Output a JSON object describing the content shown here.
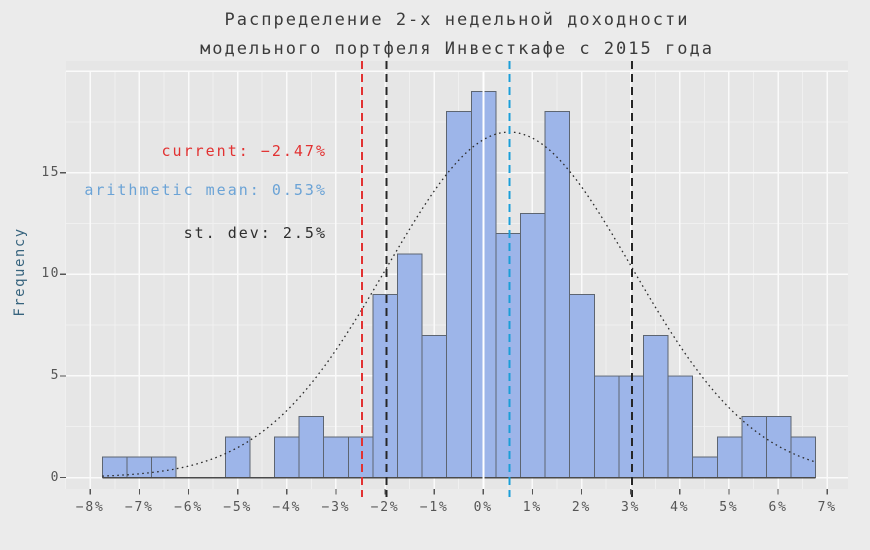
{
  "title": {
    "line1": "Распределение 2-х недельной доходности",
    "line2": "модельного портфеля Инвесткафе с 2015 года"
  },
  "annotations": {
    "current": {
      "text": "current: −2.47%",
      "value": -2.47,
      "color": "#e23232"
    },
    "mean": {
      "text": "arithmetic mean: 0.53%",
      "value": 0.53,
      "color": "#6ba3d6"
    },
    "stdev": {
      "text": "st. dev: 2.5%",
      "value": 2.5,
      "color": "#2e2e2e"
    }
  },
  "chart_data": {
    "type": "bar",
    "subtype": "histogram",
    "title": "Распределение 2-х недельной доходности модельного портфеля Инвесткафе с 2015 года",
    "xlabel": "",
    "ylabel": "Frequency",
    "bin_start": -7.755,
    "bin_width": 0.5007,
    "counts": [
      1,
      1,
      1,
      0,
      0,
      2,
      0,
      2,
      3,
      2,
      2,
      9,
      11,
      7,
      18,
      19,
      12,
      13,
      18,
      9,
      5,
      5,
      7,
      5,
      1,
      2,
      3,
      3,
      2
    ],
    "normal_curve": {
      "mean": 0.53,
      "std": 2.5,
      "peak": 17
    },
    "vlines": [
      {
        "name": "zero-line",
        "x": 0,
        "color": "#ffffff",
        "style": "solid"
      },
      {
        "name": "current-line",
        "x": -2.47,
        "color": "#e23232",
        "style": "dashed"
      },
      {
        "name": "mean-minus-std-line",
        "x": -1.97,
        "color": "#262626",
        "style": "dashed"
      },
      {
        "name": "mean-plus-std-line",
        "x": 3.03,
        "color": "#262626",
        "style": "dashed"
      },
      {
        "name": "mean-line",
        "x": 0.53,
        "color": "#1b9ed8",
        "style": "dashed"
      }
    ],
    "xlim": [
      -8.5,
      7.45
    ],
    "ylim": [
      -0.5,
      20.5
    ],
    "grid": true,
    "legend": false,
    "xticks": [
      {
        "v": -8,
        "label": "−8%"
      },
      {
        "v": -7,
        "label": "−7%"
      },
      {
        "v": -6,
        "label": "−6%"
      },
      {
        "v": -5,
        "label": "−5%"
      },
      {
        "v": -4,
        "label": "−4%"
      },
      {
        "v": -3,
        "label": "−3%"
      },
      {
        "v": -2,
        "label": "−2%"
      },
      {
        "v": -1,
        "label": "−1%"
      },
      {
        "v": 0,
        "label": "0%"
      },
      {
        "v": 1,
        "label": "1%"
      },
      {
        "v": 2,
        "label": "2%"
      },
      {
        "v": 3,
        "label": "3%"
      },
      {
        "v": 4,
        "label": "4%"
      },
      {
        "v": 5,
        "label": "5%"
      },
      {
        "v": 6,
        "label": "6%"
      },
      {
        "v": 7,
        "label": "7%"
      }
    ],
    "yticks": [
      {
        "v": 0,
        "label": "0"
      },
      {
        "v": 5,
        "label": "5"
      },
      {
        "v": 10,
        "label": "10"
      },
      {
        "v": 15,
        "label": "15"
      }
    ]
  },
  "colors": {
    "figure_bg": "#ebebeb",
    "panel_bg": "#e6e6e6",
    "grid_major": "#fafafa",
    "grid_minor": "#f0f0f0",
    "bar_fill": "#9db5e9",
    "bar_edge": "#5d6571",
    "baseline": "#4a4a4a",
    "curve": "#2b2b2b",
    "tick_mark": "#555555",
    "tick_label": "#555555",
    "title_text": "#3b3b3b",
    "ylabel_text": "#36637d"
  }
}
